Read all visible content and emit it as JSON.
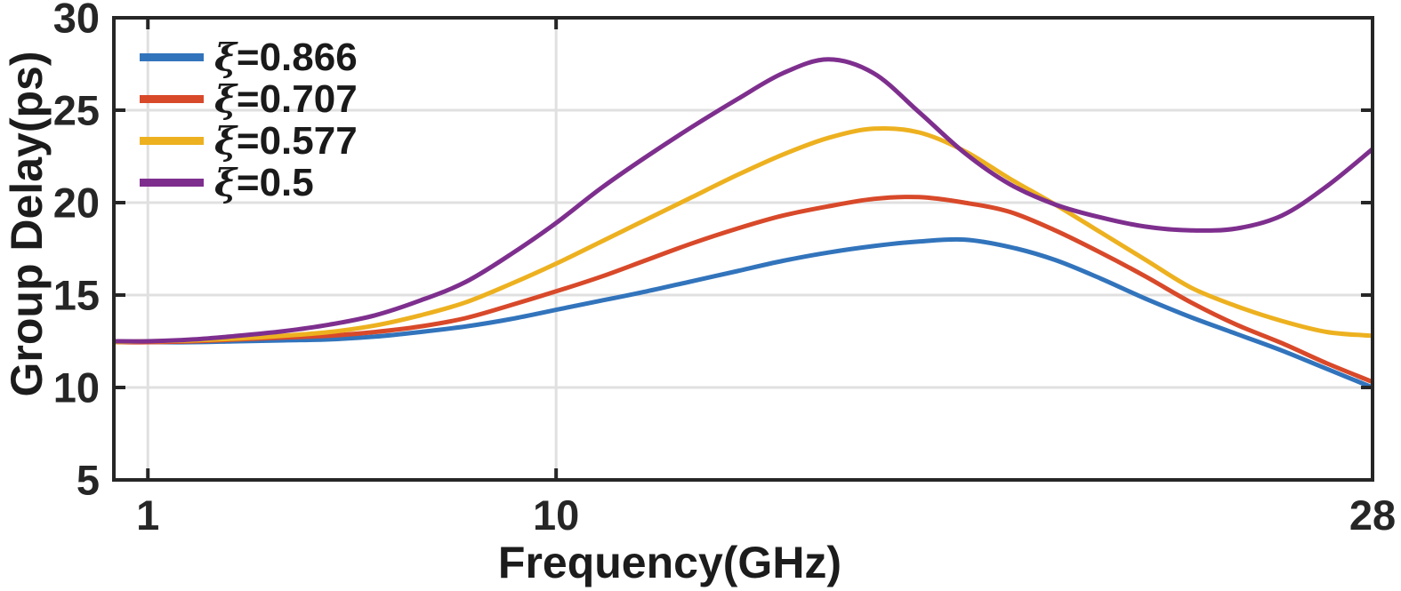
{
  "chart_data": {
    "type": "line",
    "title": "",
    "xlabel": "Frequency(GHz)",
    "ylabel": "Group Delay(ps)",
    "x_scale": "linear",
    "xlim": [
      0.25,
      28
    ],
    "ylim": [
      5,
      30
    ],
    "x_ticks": [
      1,
      10,
      28
    ],
    "y_ticks": [
      5,
      10,
      15,
      20,
      25,
      30
    ],
    "grid": true,
    "legend_position": "top-left-inside",
    "x": [
      0.25,
      1,
      2,
      3,
      4,
      5,
      6,
      7,
      8,
      9,
      10,
      11,
      12,
      13,
      14,
      15,
      16,
      17,
      18,
      19,
      20,
      21,
      22,
      23,
      24,
      25,
      26,
      27,
      28
    ],
    "series": [
      {
        "name": "ξ=0.866",
        "symbol": "ξ",
        "value_label": "=0.866",
        "color": "#3274BC",
        "values": [
          12.45,
          12.45,
          12.45,
          12.5,
          12.55,
          12.6,
          12.75,
          13.0,
          13.3,
          13.7,
          14.2,
          14.7,
          15.2,
          15.75,
          16.3,
          16.85,
          17.3,
          17.65,
          17.9,
          18.0,
          17.6,
          16.9,
          15.9,
          14.8,
          13.8,
          12.9,
          12.0,
          11.0,
          10.0
        ]
      },
      {
        "name": "ξ=0.707",
        "symbol": "ξ",
        "value_label": "=0.707",
        "color": "#D8492A",
        "values": [
          12.45,
          12.45,
          12.5,
          12.6,
          12.7,
          12.8,
          13.0,
          13.3,
          13.75,
          14.45,
          15.2,
          16.0,
          16.9,
          17.8,
          18.6,
          19.3,
          19.8,
          20.2,
          20.3,
          20.0,
          19.5,
          18.5,
          17.3,
          16.0,
          14.6,
          13.4,
          12.4,
          11.3,
          10.3
        ]
      },
      {
        "name": "ξ=0.577",
        "symbol": "ξ",
        "value_label": "=0.577",
        "color": "#EDB120",
        "values": [
          12.45,
          12.5,
          12.55,
          12.65,
          12.8,
          13.0,
          13.35,
          13.9,
          14.6,
          15.6,
          16.7,
          17.9,
          19.1,
          20.3,
          21.5,
          22.6,
          23.5,
          24.0,
          23.8,
          22.8,
          21.3,
          19.9,
          18.4,
          16.9,
          15.4,
          14.4,
          13.6,
          13.0,
          12.8
        ]
      },
      {
        "name": "ξ=0.5",
        "symbol": "ξ",
        "value_label": "=0.5",
        "color": "#7E2F8E",
        "values": [
          12.5,
          12.5,
          12.6,
          12.8,
          13.05,
          13.4,
          13.9,
          14.7,
          15.7,
          17.2,
          18.9,
          20.8,
          22.5,
          24.1,
          25.6,
          27.0,
          27.75,
          27.0,
          24.9,
          22.7,
          21.0,
          19.9,
          19.2,
          18.7,
          18.5,
          18.6,
          19.3,
          20.9,
          22.9
        ]
      }
    ],
    "colors": {
      "axis": "#262626",
      "grid": "#E0E0E0",
      "background": "#FFFFFF",
      "text": "#1A1A1A"
    }
  }
}
